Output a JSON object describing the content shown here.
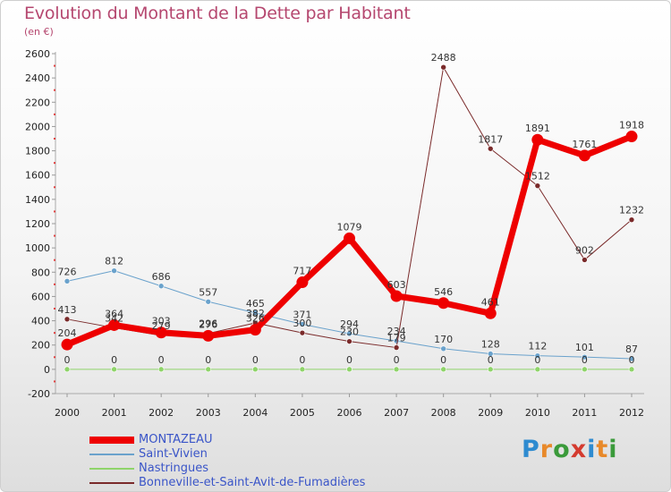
{
  "title": "Evolution du Montant de la Dette par Habitant",
  "unit": "(en €)",
  "logo": {
    "text": "Proxiti",
    "colors": [
      "#2e8bd0",
      "#e8892a",
      "#3a9a3a",
      "#d43b2f",
      "#2e8bd0",
      "#e8892a",
      "#3a9a3a"
    ]
  },
  "chart_data": {
    "type": "line",
    "x": [
      2000,
      2001,
      2002,
      2003,
      2004,
      2005,
      2006,
      2007,
      2008,
      2009,
      2010,
      2011,
      2012
    ],
    "ylim": [
      -200,
      2600
    ],
    "yticks": [
      -200,
      0,
      200,
      400,
      600,
      800,
      1000,
      1200,
      1400,
      1600,
      1800,
      2000,
      2200,
      2400,
      2600
    ],
    "grid": false,
    "legend_position": "bottom-left",
    "series": [
      {
        "name": "Saint-Vivien",
        "color": "#6aa2cc",
        "width": 1,
        "values": [
          726,
          812,
          686,
          557,
          465,
          371,
          294,
          234,
          170,
          128,
          112,
          101,
          87
        ]
      },
      {
        "name": "Nastringues",
        "color": "#8fd46a",
        "width": 1,
        "values": [
          0,
          0,
          0,
          0,
          0,
          0,
          0,
          0,
          0,
          0,
          0,
          0,
          0
        ]
      },
      {
        "name": "Bonneville-et-Saint-Avit-de-Fumadières",
        "color": "#7a2a2a",
        "width": 1,
        "values": [
          413,
          342,
          279,
          296,
          382,
          300,
          230,
          179,
          2488,
          1817,
          1512,
          902,
          1232
        ]
      },
      {
        "name": "MONTAZEAU",
        "color": "#ee0000",
        "width": 7,
        "values": [
          204,
          364,
          303,
          276,
          326,
          717,
          1079,
          603,
          546,
          461,
          1891,
          1761,
          1918
        ]
      }
    ]
  }
}
